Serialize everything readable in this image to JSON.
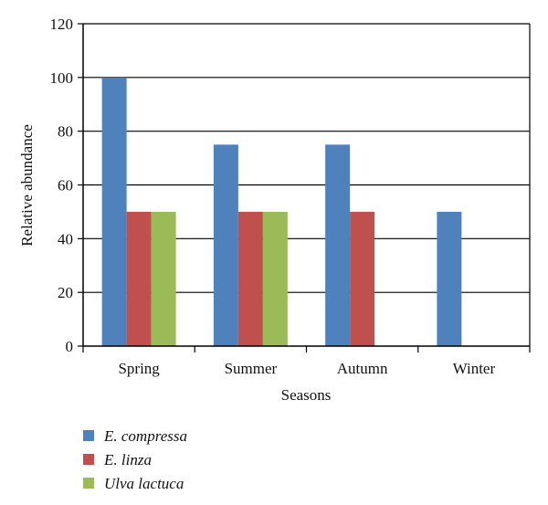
{
  "chart_data": {
    "type": "bar",
    "title": "",
    "xlabel": "Seasons",
    "ylabel": "Relative abundance",
    "ylim": [
      0,
      120
    ],
    "yticks": [
      0,
      20,
      40,
      60,
      80,
      100,
      120
    ],
    "grid": true,
    "categories": [
      "Spring",
      "Summer",
      "Autumn",
      "Winter"
    ],
    "series": [
      {
        "name": "E. compressa",
        "color": "#4F81BD",
        "values": [
          100,
          75,
          75,
          50
        ]
      },
      {
        "name": "E. linza",
        "color": "#C0504D",
        "values": [
          50,
          50,
          50,
          0
        ]
      },
      {
        "name": "Ulva lactuca",
        "color": "#9BBB59",
        "values": [
          50,
          50,
          0,
          0
        ]
      }
    ],
    "legend_position": "bottom-left"
  }
}
